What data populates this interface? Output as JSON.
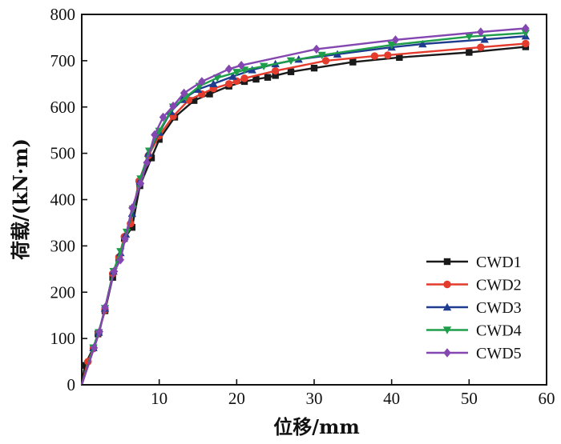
{
  "chart_data": {
    "type": "line",
    "title": "",
    "xlabel": "位移/mm",
    "ylabel": "荷载/(kN·m)",
    "xlim": [
      0,
      60
    ],
    "ylim": [
      0,
      800
    ],
    "xticks": [
      10,
      20,
      30,
      40,
      50,
      60
    ],
    "yticks": [
      0,
      100,
      200,
      300,
      400,
      500,
      600,
      700,
      800
    ],
    "grid": false,
    "legend_position": "bottom-right",
    "series": [
      {
        "name": "CWD1",
        "color": "#1a1a1a",
        "marker": "square",
        "points": [
          [
            0,
            0
          ],
          [
            0.4,
            42
          ],
          [
            1.5,
            80
          ],
          [
            2.1,
            110
          ],
          [
            3.0,
            160
          ],
          [
            4.0,
            232
          ],
          [
            4.8,
            272
          ],
          [
            5.5,
            316
          ],
          [
            6.5,
            340
          ],
          [
            7.5,
            430
          ],
          [
            9.0,
            490
          ],
          [
            10.0,
            530
          ],
          [
            12.0,
            578
          ],
          [
            14.5,
            614
          ],
          [
            16.5,
            628
          ],
          [
            19.0,
            645
          ],
          [
            21.0,
            655
          ],
          [
            22.5,
            660
          ],
          [
            24.0,
            664
          ],
          [
            25.0,
            668
          ],
          [
            27.0,
            676
          ],
          [
            30.0,
            684
          ],
          [
            35.0,
            697
          ],
          [
            41.0,
            707
          ],
          [
            50.0,
            718
          ],
          [
            57.3,
            730
          ]
        ]
      },
      {
        "name": "CWD2",
        "color": "#e33b2c",
        "marker": "circle",
        "points": [
          [
            0,
            0
          ],
          [
            0.8,
            50
          ],
          [
            1.5,
            78
          ],
          [
            2.2,
            112
          ],
          [
            3.0,
            162
          ],
          [
            4.0,
            240
          ],
          [
            4.8,
            276
          ],
          [
            5.5,
            320
          ],
          [
            6.3,
            348
          ],
          [
            7.4,
            440
          ],
          [
            8.6,
            495
          ],
          [
            10.0,
            538
          ],
          [
            11.8,
            580
          ],
          [
            13.8,
            615
          ],
          [
            15.5,
            628
          ],
          [
            17.0,
            640
          ],
          [
            19.0,
            650
          ],
          [
            20.0,
            656
          ],
          [
            21.0,
            662
          ],
          [
            25.0,
            678
          ],
          [
            31.5,
            700
          ],
          [
            37.8,
            710
          ],
          [
            39.5,
            712
          ],
          [
            51.5,
            729
          ],
          [
            57.3,
            737
          ]
        ]
      },
      {
        "name": "CWD3",
        "color": "#1f3c8f",
        "marker": "triangle-up",
        "points": [
          [
            0,
            0
          ],
          [
            1.5,
            80
          ],
          [
            2.2,
            113
          ],
          [
            3.0,
            165
          ],
          [
            4.1,
            245
          ],
          [
            5.0,
            285
          ],
          [
            5.7,
            325
          ],
          [
            6.5,
            370
          ],
          [
            7.5,
            440
          ],
          [
            8.6,
            500
          ],
          [
            10.0,
            545
          ],
          [
            11.5,
            590
          ],
          [
            13.0,
            616
          ],
          [
            15.0,
            638
          ],
          [
            17.0,
            650
          ],
          [
            19.5,
            666
          ],
          [
            22.0,
            680
          ],
          [
            25.0,
            693
          ],
          [
            28.0,
            703
          ],
          [
            33.0,
            714
          ],
          [
            40.0,
            729
          ],
          [
            44.0,
            736
          ],
          [
            52.0,
            746
          ],
          [
            57.3,
            753
          ]
        ]
      },
      {
        "name": "CWD4",
        "color": "#1e9e4a",
        "marker": "triangle-down",
        "points": [
          [
            0,
            0
          ],
          [
            1.5,
            80
          ],
          [
            2.2,
            113
          ],
          [
            3.0,
            165
          ],
          [
            4.1,
            245
          ],
          [
            5.0,
            288
          ],
          [
            5.8,
            330
          ],
          [
            6.6,
            380
          ],
          [
            7.6,
            445
          ],
          [
            8.7,
            505
          ],
          [
            10.0,
            548
          ],
          [
            11.8,
            600
          ],
          [
            13.5,
            622
          ],
          [
            15.2,
            645
          ],
          [
            17.5,
            663
          ],
          [
            20.0,
            675
          ],
          [
            21.0,
            680
          ],
          [
            23.5,
            688
          ],
          [
            27.0,
            700
          ],
          [
            31.0,
            712
          ],
          [
            40.0,
            734
          ],
          [
            50.0,
            752
          ],
          [
            57.3,
            760
          ]
        ]
      },
      {
        "name": "CWD5",
        "color": "#8446b0",
        "marker": "diamond",
        "points": [
          [
            0,
            0
          ],
          [
            1.6,
            80
          ],
          [
            2.3,
            115
          ],
          [
            3.0,
            167
          ],
          [
            4.2,
            245
          ],
          [
            5.0,
            270
          ],
          [
            5.6,
            315
          ],
          [
            6.5,
            382
          ],
          [
            7.6,
            435
          ],
          [
            8.4,
            480
          ],
          [
            9.4,
            540
          ],
          [
            10.5,
            578
          ],
          [
            11.8,
            602
          ],
          [
            13.2,
            630
          ],
          [
            15.5,
            655
          ],
          [
            19.0,
            682
          ],
          [
            20.6,
            690
          ],
          [
            30.3,
            725
          ],
          [
            40.5,
            745
          ],
          [
            51.5,
            762
          ],
          [
            57.3,
            770
          ]
        ]
      }
    ]
  }
}
